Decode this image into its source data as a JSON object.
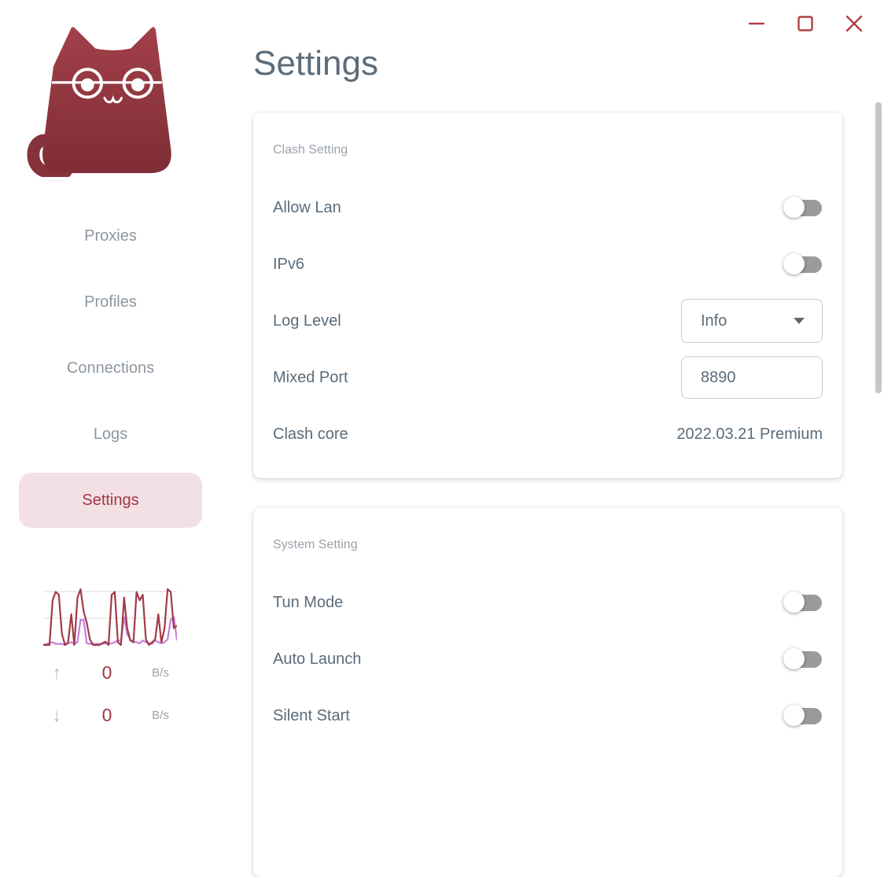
{
  "window": {
    "controls": {
      "minimize": "minimize",
      "maximize": "maximize",
      "close": "close"
    }
  },
  "sidebar": {
    "logo": "clash-cat-logo",
    "items": [
      {
        "label": "Proxies",
        "active": false
      },
      {
        "label": "Profiles",
        "active": false
      },
      {
        "label": "Connections",
        "active": false
      },
      {
        "label": "Logs",
        "active": false
      },
      {
        "label": "Settings",
        "active": true
      }
    ],
    "traffic": {
      "up": {
        "value": "0",
        "unit": "B/s"
      },
      "down": {
        "value": "0",
        "unit": "B/s"
      }
    }
  },
  "main": {
    "title": "Settings",
    "cards": [
      {
        "section": "Clash Setting",
        "rows": [
          {
            "label": "Allow Lan",
            "type": "toggle",
            "value": false
          },
          {
            "label": "IPv6",
            "type": "toggle",
            "value": false
          },
          {
            "label": "Log Level",
            "type": "select",
            "value": "Info"
          },
          {
            "label": "Mixed Port",
            "type": "input",
            "value": "8890"
          },
          {
            "label": "Clash core",
            "type": "text",
            "value": "2022.03.21 Premium"
          }
        ]
      },
      {
        "section": "System Setting",
        "rows": [
          {
            "label": "Tun Mode",
            "type": "toggle",
            "value": false
          },
          {
            "label": "Auto Launch",
            "type": "toggle",
            "value": false
          },
          {
            "label": "Silent Start",
            "type": "toggle",
            "value": false
          }
        ]
      }
    ]
  },
  "chart_data": {
    "type": "line",
    "title": "traffic-sparkline",
    "xlabel": "",
    "ylabel": "",
    "ylim": [
      0,
      110
    ],
    "gridlines": [
      48,
      96
    ],
    "legend": "none",
    "axes": "hidden",
    "series": [
      {
        "name": "download",
        "color": "#c77fd9",
        "values": [
          0,
          2,
          3,
          5,
          2,
          2,
          2,
          0,
          3,
          5,
          2,
          5,
          45,
          45,
          3,
          2,
          2,
          2,
          2,
          2,
          3,
          2,
          3,
          5,
          8,
          8,
          50,
          20,
          10,
          5,
          5,
          3,
          8,
          5,
          3,
          2,
          8,
          5,
          3,
          5,
          10,
          45,
          50,
          8
        ]
      },
      {
        "name": "upload",
        "color": "#a23b47",
        "values": [
          0,
          0,
          0,
          80,
          95,
          90,
          20,
          0,
          5,
          55,
          0,
          85,
          100,
          60,
          40,
          10,
          0,
          0,
          0,
          3,
          6,
          0,
          90,
          95,
          5,
          0,
          85,
          30,
          8,
          5,
          95,
          80,
          90,
          10,
          0,
          5,
          10,
          55,
          5,
          30,
          100,
          95,
          30,
          35
        ]
      }
    ]
  },
  "colors": {
    "accent": "#a13747",
    "accent-strong": "#b23e48",
    "pill-bg": "#f3e0e4",
    "label": "#5b6b79",
    "muted": "#9aa2ab",
    "toggle-track": "#9b9b9b"
  }
}
